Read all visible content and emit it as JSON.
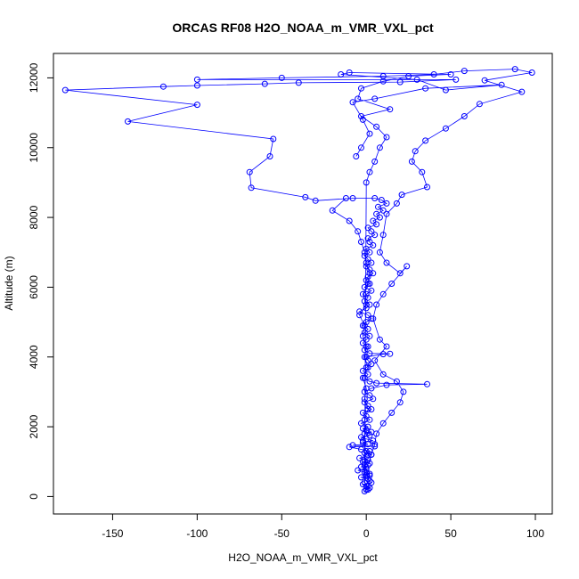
{
  "chart_data": {
    "type": "scatter",
    "title": "ORCAS RF08 H2O_NOAA_m_VMR_VXL_pct",
    "xlabel": "H2O_NOAA_m_VMR_VXL_pct",
    "ylabel": "Altitude (m)",
    "xlim": [
      -185,
      110
    ],
    "ylim": [
      -500,
      12700
    ],
    "x_ticks": [
      -150,
      -100,
      -50,
      0,
      50,
      100
    ],
    "y_ticks": [
      0,
      2000,
      4000,
      6000,
      8000,
      10000,
      12000
    ],
    "x_tick_labels": [
      "-150",
      "-100",
      "-50",
      "0",
      "50",
      "100"
    ],
    "y_tick_labels": [
      "0",
      "2000",
      "4000",
      "6000",
      "8000",
      "10000",
      "12000"
    ],
    "grid": false,
    "marker": "open-circle",
    "line_style": "connected",
    "color": "#0000ff",
    "series": [
      {
        "name": "",
        "points": [
          [
            -1,
            150
          ],
          [
            0,
            200
          ],
          [
            2,
            250
          ],
          [
            1,
            300
          ],
          [
            -2,
            350
          ],
          [
            3,
            400
          ],
          [
            2,
            450
          ],
          [
            1,
            500
          ],
          [
            -3,
            550
          ],
          [
            0,
            600
          ],
          [
            2,
            650
          ],
          [
            -1,
            700
          ],
          [
            -5,
            750
          ],
          [
            0,
            800
          ],
          [
            -3,
            850
          ],
          [
            -1,
            900
          ],
          [
            2,
            950
          ],
          [
            -2,
            1000
          ],
          [
            1,
            1050
          ],
          [
            -4,
            1100
          ],
          [
            0,
            1150
          ],
          [
            3,
            1200
          ],
          [
            -1,
            1250
          ],
          [
            2,
            1300
          ],
          [
            -3,
            1350
          ],
          [
            -10,
            1420
          ],
          [
            5,
            1440
          ],
          [
            -8,
            1470
          ],
          [
            1,
            1500
          ],
          [
            -2,
            1550
          ],
          [
            4,
            1600
          ],
          [
            0,
            1650
          ],
          [
            -3,
            1700
          ],
          [
            2,
            1750
          ],
          [
            -1,
            1800
          ],
          [
            3,
            1850
          ],
          [
            0,
            1900
          ],
          [
            -2,
            1950
          ],
          [
            1,
            2000
          ],
          [
            -3,
            2100
          ],
          [
            2,
            2200
          ],
          [
            0,
            2300
          ],
          [
            -2,
            2400
          ],
          [
            3,
            2500
          ],
          [
            1,
            2600
          ],
          [
            -1,
            2700
          ],
          [
            4,
            2800
          ],
          [
            2,
            2900
          ],
          [
            -1,
            3000
          ],
          [
            3,
            3100
          ],
          [
            12,
            3200
          ],
          [
            36,
            3220
          ],
          [
            6,
            3250
          ],
          [
            2,
            3300
          ],
          [
            -1,
            3400
          ],
          [
            1,
            3500
          ],
          [
            -2,
            3600
          ],
          [
            0,
            3700
          ],
          [
            3,
            3800
          ],
          [
            1,
            3900
          ],
          [
            0,
            4000
          ],
          [
            10,
            4080
          ],
          [
            14,
            4090
          ],
          [
            2,
            4100
          ],
          [
            -1,
            4200
          ],
          [
            1,
            4300
          ],
          [
            -2,
            4400
          ],
          [
            0,
            4500
          ],
          [
            2,
            4600
          ],
          [
            -1,
            4700
          ],
          [
            1,
            4800
          ],
          [
            -2,
            4900
          ],
          [
            0,
            5000
          ],
          [
            3,
            5100
          ],
          [
            1,
            5200
          ],
          [
            -4,
            5300
          ],
          [
            0,
            5400
          ],
          [
            2,
            5500
          ],
          [
            -1,
            5600
          ],
          [
            1,
            5700
          ],
          [
            0,
            5800
          ],
          [
            3,
            5900
          ],
          [
            -1,
            6000
          ],
          [
            2,
            6100
          ],
          [
            0,
            6200
          ],
          [
            1,
            6300
          ],
          [
            4,
            6400
          ],
          [
            2,
            6500
          ],
          [
            0,
            6600
          ],
          [
            3,
            6700
          ],
          [
            1,
            6800
          ],
          [
            -1,
            6900
          ],
          [
            2,
            7000
          ],
          [
            0,
            7100
          ],
          [
            4,
            7200
          ],
          [
            2,
            7300
          ],
          [
            1,
            7400
          ],
          [
            5,
            7500
          ],
          [
            3,
            7600
          ],
          [
            1,
            7700
          ],
          [
            6,
            7800
          ],
          [
            4,
            7900
          ],
          [
            8,
            8000
          ],
          [
            6,
            8100
          ],
          [
            10,
            8200
          ],
          [
            7,
            8300
          ],
          [
            12,
            8400
          ],
          [
            9,
            8500
          ],
          [
            5,
            8550
          ],
          [
            -8,
            8550
          ],
          [
            -30,
            8480
          ],
          [
            -36,
            8580
          ],
          [
            -68,
            8850
          ],
          [
            -69,
            9300
          ],
          [
            -57,
            9750
          ],
          [
            -55,
            10250
          ],
          [
            -141,
            10750
          ],
          [
            -100,
            11230
          ],
          [
            -178,
            11650
          ],
          [
            -120,
            11750
          ],
          [
            -100,
            11780
          ],
          [
            -60,
            11830
          ],
          [
            -40,
            11860
          ],
          [
            20,
            11880
          ],
          [
            53,
            11950
          ],
          [
            -100,
            11950
          ],
          [
            -50,
            12000
          ],
          [
            10,
            12050
          ],
          [
            40,
            12100
          ],
          [
            58,
            12200
          ],
          [
            88,
            12250
          ],
          [
            98,
            12150
          ],
          [
            70,
            11930
          ],
          [
            92,
            11600
          ],
          [
            67,
            11250
          ],
          [
            58,
            10900
          ],
          [
            47,
            10550
          ],
          [
            35,
            10200
          ],
          [
            29,
            9900
          ],
          [
            27,
            9600
          ],
          [
            33,
            9300
          ],
          [
            36,
            8870
          ],
          [
            21,
            8650
          ],
          [
            18,
            8400
          ],
          [
            12,
            8100
          ],
          [
            10,
            7500
          ],
          [
            8,
            7000
          ],
          [
            12,
            6700
          ],
          [
            20,
            6400
          ],
          [
            24,
            6600
          ],
          [
            15,
            6100
          ],
          [
            10,
            5800
          ],
          [
            6,
            5500
          ],
          [
            4,
            5100
          ],
          [
            8,
            4500
          ],
          [
            12,
            4300
          ],
          [
            5,
            3900
          ],
          [
            10,
            3500
          ],
          [
            18,
            3300
          ],
          [
            22,
            3000
          ],
          [
            20,
            2700
          ],
          [
            15,
            2400
          ],
          [
            10,
            2100
          ],
          [
            6,
            1800
          ],
          [
            5,
            1500
          ],
          [
            3,
            1200
          ],
          [
            1,
            900
          ],
          [
            2,
            600
          ],
          [
            0,
            300
          ],
          [
            1,
            200
          ]
        ]
      },
      {
        "name": "",
        "points": [
          [
            -12,
            8550
          ],
          [
            -20,
            8200
          ],
          [
            -10,
            7900
          ],
          [
            -5,
            7600
          ],
          [
            -3,
            7300
          ],
          [
            -1,
            7000
          ],
          [
            0,
            6700
          ],
          [
            2,
            6400
          ],
          [
            1,
            6100
          ],
          [
            -2,
            5800
          ],
          [
            0,
            5500
          ],
          [
            -4,
            5200
          ],
          [
            -1,
            4900
          ],
          [
            -2,
            4600
          ],
          [
            0,
            4300
          ],
          [
            -1,
            4000
          ],
          [
            1,
            3700
          ],
          [
            -2,
            3400
          ],
          [
            0,
            3100
          ],
          [
            -1,
            2800
          ],
          [
            1,
            2500
          ],
          [
            -1,
            2200
          ],
          [
            0,
            1900
          ],
          [
            -2,
            1600
          ],
          [
            0,
            1300
          ],
          [
            -1,
            1000
          ],
          [
            0,
            700
          ],
          [
            -1,
            400
          ],
          [
            0,
            9000
          ],
          [
            2,
            9300
          ],
          [
            5,
            9600
          ],
          [
            8,
            10000
          ],
          [
            12,
            10300
          ],
          [
            6,
            10600
          ],
          [
            -3,
            10900
          ],
          [
            14,
            11100
          ],
          [
            -5,
            11400
          ],
          [
            -3,
            11700
          ],
          [
            10,
            11900
          ],
          [
            25,
            12050
          ],
          [
            50,
            12100
          ],
          [
            -10,
            12150
          ],
          [
            -15,
            12100
          ],
          [
            30,
            11950
          ],
          [
            47,
            11650
          ],
          [
            80,
            11800
          ],
          [
            35,
            11700
          ],
          [
            5,
            11400
          ],
          [
            -8,
            11300
          ],
          [
            -2,
            10800
          ],
          [
            2,
            10400
          ],
          [
            -3,
            10000
          ],
          [
            -6,
            9750
          ]
        ]
      }
    ]
  }
}
